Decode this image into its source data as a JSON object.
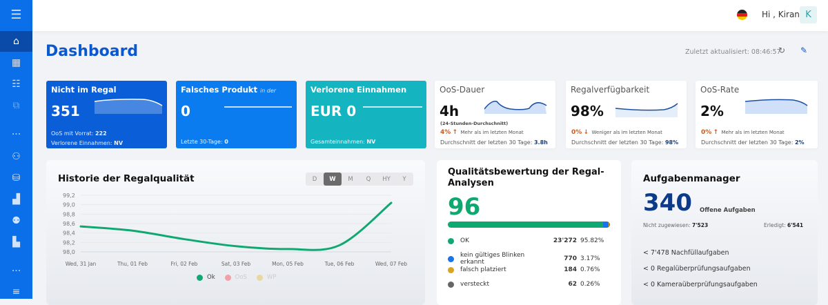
{
  "sidebar": {
    "items": [
      "menu-icon",
      "home-icon",
      "grid-icon",
      "checklist-icon",
      "chart-icon",
      "more-icon",
      "hierarchy-icon",
      "database-icon",
      "inventory-icon",
      "users-icon",
      "map-icon",
      "more-icon",
      "list-icon"
    ],
    "color": "#0a6fe8"
  },
  "header": {
    "greeting": "Hi , Kiran",
    "avatar": "K",
    "language": "de"
  },
  "page": {
    "title": "Dashboard",
    "updated": "Zuletzt aktualisiert: 08:46:57"
  },
  "kpis": [
    {
      "title": "Nicht im Regal",
      "value": "351",
      "foot1_label": "OoS mit Vorrat:",
      "foot1_value": "222",
      "foot2_label": "Verlorene Einnahmen:",
      "foot2_value": "NV",
      "color": "#0a5fd8"
    },
    {
      "title": "Falsches Produkt",
      "title_suffix": "in der",
      "value": "0",
      "foot_label": "Letzte 30-Tage:",
      "foot_value": "0",
      "color": "#0b7cf0"
    },
    {
      "title": "Verlorene Einnahmen",
      "value": "EUR 0",
      "foot_label": "Gesamteinnahmen:",
      "foot_value": "NV",
      "color": "#14b4c0"
    }
  ],
  "stats": [
    {
      "title": "OoS-Dauer",
      "value": "4h",
      "sub": "(24-Stunden-Durchschnitt)",
      "change": "4%",
      "arrow": "↑",
      "change_text": "Mehr als im letzten Monat",
      "avg_label": "Durchschnitt der letzten 30 Tage:",
      "avg_value": "3.8h"
    },
    {
      "title": "Regalverfügbarkeit",
      "value": "98%",
      "change": "0%",
      "arrow": "↓",
      "change_text": "Weniger als im letzten Monat",
      "avg_label": "Durchschnitt der letzten 30 Tage:",
      "avg_value": "98%"
    },
    {
      "title": "OoS-Rate",
      "value": "2%",
      "change": "0%",
      "arrow": "↑",
      "change_text": "Mehr als im letzten Monat",
      "avg_label": "Durchschnitt der letzten 30 Tage:",
      "avg_value": "2%"
    }
  ],
  "history": {
    "title": "Historie der Regalqualität",
    "ranges": [
      "D",
      "W",
      "M",
      "Q",
      "HY",
      "Y"
    ],
    "active_range": "W"
  },
  "chart_data": {
    "type": "line",
    "x": [
      "Wed, 31 Jan",
      "Thu, 01 Feb",
      "Fri, 02 Feb",
      "Sat, 03 Feb",
      "Mon, 05 Feb",
      "Tue, 06 Feb",
      "Wed, 07 Feb"
    ],
    "series": [
      {
        "name": "Ok",
        "values": [
          98.54,
          98.45,
          98.27,
          98.12,
          98.06,
          98.14,
          99.04
        ],
        "color": "#0fa870"
      }
    ],
    "legend": [
      {
        "name": "Ok",
        "color": "#0fa870",
        "active": true
      },
      {
        "name": "OoS",
        "color": "#f0a0a8",
        "active": false
      },
      {
        "name": "WP",
        "color": "#e8d8a0",
        "active": false
      }
    ],
    "yticks": [
      "99,2",
      "99,0",
      "98,8",
      "98,6",
      "98,4",
      "98,2",
      "98,0"
    ],
    "ylim": [
      98.0,
      99.2
    ],
    "grid": true,
    "legend_position": "bottom"
  },
  "quality": {
    "title": "Qualitätsbewertung der Regal-Analysen",
    "score": "96",
    "rows": [
      {
        "label": "OK",
        "count": "23'272",
        "pct": "95.82%",
        "share": 95.82,
        "color": "#0fa870"
      },
      {
        "label": "kein gültiges Blinken erkannt",
        "count": "770",
        "pct": "3.17%",
        "share": 3.17,
        "color": "#1a73e8"
      },
      {
        "label": "falsch platziert",
        "count": "184",
        "pct": "0.76%",
        "share": 0.76,
        "color": "#d9a520"
      },
      {
        "label": "versteckt",
        "count": "62",
        "pct": "0.26%",
        "share": 0.26,
        "color": "#666666"
      }
    ]
  },
  "tasks": {
    "title": "Aufgabenmanager",
    "count": "340",
    "count_label": "Offene Aufgaben",
    "unassigned_label": "Nicht zugewiesen:",
    "unassigned": "7'523",
    "done_label": "Erledigt:",
    "done": "6'541",
    "items": [
      "< 7'478 Nachfüllaufgaben",
      "< 0 Regalüberprüfungsaufgaben",
      "< 0 Kameraüberprüfungsaufgaben"
    ]
  }
}
